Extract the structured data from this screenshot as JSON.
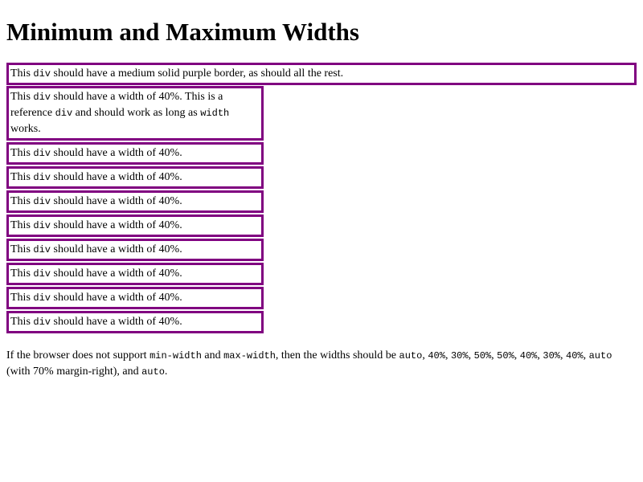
{
  "title": "Minimum and Maximum Widths",
  "boxes": {
    "first": {
      "pre": "This",
      "code": "div",
      "post": "should have a medium solid purple border, as should all the rest."
    },
    "reference": {
      "pre": "This",
      "code1": "div",
      "mid": "should have a width of 40%. This is a reference",
      "code2": "div",
      "mid2": "and should work as long as",
      "code3": "width",
      "post": "works."
    },
    "repeat": {
      "pre": "This",
      "code": "div",
      "post": "should have a width of 40%."
    }
  },
  "note": {
    "t1": "If the browser does not support",
    "c1": "min-width",
    "t2": "and",
    "c2": "max-width",
    "t3": ", then the widths should be",
    "c3": "auto",
    "c4": "40%",
    "c5": "30%",
    "c6": "50%",
    "c7": "50%",
    "c8": "40%",
    "c9": "30%",
    "c10": "40%",
    "c11": "auto",
    "t4": "(with 70% margin-right), and",
    "c12": "auto",
    "t5": "."
  },
  "colors": {
    "border": "#800080"
  }
}
